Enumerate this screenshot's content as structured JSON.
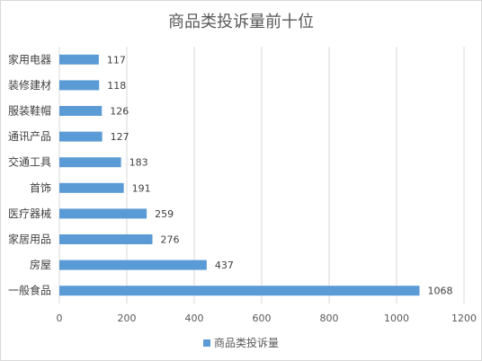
{
  "chart_data": {
    "type": "bar",
    "orientation": "horizontal",
    "title": "商品类投诉量前十位",
    "categories": [
      "家用电器",
      "装修建材",
      "服装鞋帽",
      "通讯产品",
      "交通工具",
      "首饰",
      "医疗器械",
      "家居用品",
      "房屋",
      "一般食品"
    ],
    "series": [
      {
        "name": "商品类投诉量",
        "values": [
          117,
          118,
          126,
          127,
          183,
          191,
          259,
          276,
          437,
          1068
        ],
        "color": "#5b9bd5"
      }
    ],
    "xlim": [
      0,
      1200
    ],
    "xticks": [
      0,
      200,
      400,
      600,
      800,
      1000,
      1200
    ],
    "grid": true,
    "legend": "bottom"
  }
}
